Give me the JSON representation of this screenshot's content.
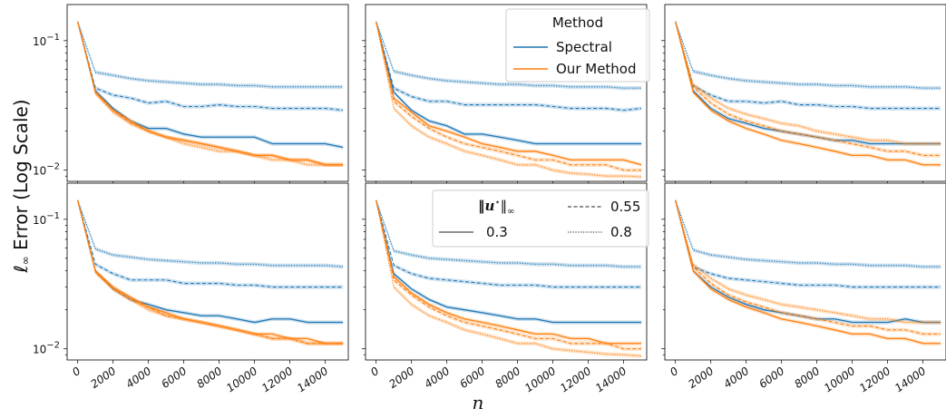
{
  "figure": {
    "ylabel_prefix": "ℓ",
    "ylabel_sub": "∞",
    "ylabel_rest": " Error (Log Scale)",
    "xlabel": "n",
    "xticks": [
      0,
      2000,
      4000,
      6000,
      8000,
      10000,
      12000,
      14000
    ],
    "yticks": [
      {
        "value": 0.1,
        "base": "10",
        "exp": "−1"
      },
      {
        "value": 0.01,
        "base": "10",
        "exp": "−2"
      }
    ],
    "yscale": "log",
    "ylim": [
      0.0082,
      0.19
    ],
    "xlim": [
      -600,
      15300
    ],
    "colors": {
      "Spectral": "#1f77b4",
      "Our Method": "#ff7f0e"
    }
  },
  "legend_method": {
    "title": "Method",
    "entries": [
      {
        "label": "Spectral",
        "color": "#1f77b4"
      },
      {
        "label": "Our Method",
        "color": "#ff7f0e"
      }
    ]
  },
  "legend_norm": {
    "title_main": "‖u",
    "title_sup": "⋆",
    "title_end": "‖",
    "title_sub": "∞",
    "entries": [
      {
        "label": "0.55",
        "dash": "dashed"
      },
      {
        "label": "0.3",
        "dash": "solid"
      },
      {
        "label": "0.8",
        "dash": "dotted"
      }
    ]
  },
  "chart_data": [
    {
      "type": "line",
      "panel": "row1-col1",
      "x": [
        0,
        1000,
        2000,
        3000,
        4000,
        5000,
        6000,
        7000,
        8000,
        9000,
        10000,
        11000,
        12000,
        13000,
        14000,
        15000
      ],
      "series": [
        {
          "name": "Spectral",
          "linestyle": "dotted",
          "values": [
            0.14,
            0.057,
            0.054,
            0.051,
            0.049,
            0.048,
            0.047,
            0.046,
            0.046,
            0.045,
            0.045,
            0.044,
            0.044,
            0.044,
            0.044,
            0.044
          ]
        },
        {
          "name": "Spectral",
          "linestyle": "dashed",
          "values": [
            0.14,
            0.043,
            0.038,
            0.036,
            0.033,
            0.034,
            0.031,
            0.031,
            0.032,
            0.031,
            0.031,
            0.03,
            0.03,
            0.03,
            0.03,
            0.029
          ]
        },
        {
          "name": "Spectral",
          "linestyle": "solid",
          "values": [
            0.14,
            0.041,
            0.03,
            0.024,
            0.021,
            0.021,
            0.019,
            0.018,
            0.018,
            0.018,
            0.018,
            0.016,
            0.016,
            0.016,
            0.016,
            0.015
          ]
        },
        {
          "name": "Our Method",
          "linestyle": "solid",
          "values": [
            0.14,
            0.04,
            0.029,
            0.024,
            0.02,
            0.018,
            0.017,
            0.016,
            0.015,
            0.014,
            0.013,
            0.013,
            0.012,
            0.012,
            0.011,
            0.011
          ]
        },
        {
          "name": "Our Method",
          "linestyle": "dashed",
          "values": [
            0.14,
            0.04,
            0.029,
            0.023,
            0.02,
            0.018,
            0.017,
            0.016,
            0.015,
            0.014,
            0.013,
            0.013,
            0.012,
            0.012,
            0.011,
            0.011
          ]
        },
        {
          "name": "Our Method",
          "linestyle": "dotted",
          "values": [
            0.14,
            0.039,
            0.028,
            0.023,
            0.02,
            0.018,
            0.016,
            0.015,
            0.014,
            0.014,
            0.013,
            0.012,
            0.012,
            0.011,
            0.011,
            0.011
          ]
        }
      ]
    },
    {
      "type": "line",
      "panel": "row1-col2",
      "x": [
        0,
        1000,
        2000,
        3000,
        4000,
        5000,
        6000,
        7000,
        8000,
        9000,
        10000,
        11000,
        12000,
        13000,
        14000,
        15000
      ],
      "series": [
        {
          "name": "Spectral",
          "linestyle": "dotted",
          "values": [
            0.14,
            0.058,
            0.054,
            0.051,
            0.049,
            0.048,
            0.047,
            0.046,
            0.046,
            0.045,
            0.045,
            0.044,
            0.044,
            0.044,
            0.043,
            0.043
          ]
        },
        {
          "name": "Spectral",
          "linestyle": "dashed",
          "values": [
            0.14,
            0.043,
            0.037,
            0.034,
            0.034,
            0.032,
            0.032,
            0.032,
            0.032,
            0.032,
            0.031,
            0.03,
            0.03,
            0.03,
            0.029,
            0.03
          ]
        },
        {
          "name": "Spectral",
          "linestyle": "solid",
          "values": [
            0.14,
            0.04,
            0.029,
            0.024,
            0.022,
            0.019,
            0.019,
            0.018,
            0.017,
            0.016,
            0.016,
            0.016,
            0.016,
            0.016,
            0.016,
            0.016
          ]
        },
        {
          "name": "Our Method",
          "linestyle": "solid",
          "values": [
            0.14,
            0.036,
            0.028,
            0.022,
            0.02,
            0.018,
            0.016,
            0.015,
            0.014,
            0.014,
            0.013,
            0.012,
            0.012,
            0.012,
            0.012,
            0.011
          ]
        },
        {
          "name": "Our Method",
          "linestyle": "dashed",
          "values": [
            0.14,
            0.034,
            0.026,
            0.021,
            0.018,
            0.016,
            0.015,
            0.014,
            0.013,
            0.012,
            0.012,
            0.011,
            0.011,
            0.011,
            0.01,
            0.01
          ]
        },
        {
          "name": "Our Method",
          "linestyle": "dotted",
          "values": [
            0.14,
            0.03,
            0.022,
            0.018,
            0.016,
            0.014,
            0.013,
            0.012,
            0.011,
            0.011,
            0.01,
            0.0095,
            0.0093,
            0.009,
            0.009,
            0.0089
          ]
        }
      ]
    },
    {
      "type": "line",
      "panel": "row1-col3",
      "x": [
        0,
        1000,
        2000,
        3000,
        4000,
        5000,
        6000,
        7000,
        8000,
        9000,
        10000,
        11000,
        12000,
        13000,
        14000,
        15000
      ],
      "series": [
        {
          "name": "Spectral",
          "linestyle": "dotted",
          "values": [
            0.14,
            0.058,
            0.054,
            0.051,
            0.049,
            0.048,
            0.047,
            0.046,
            0.046,
            0.045,
            0.045,
            0.044,
            0.044,
            0.044,
            0.043,
            0.043
          ]
        },
        {
          "name": "Spectral",
          "linestyle": "dashed",
          "values": [
            0.14,
            0.045,
            0.038,
            0.034,
            0.034,
            0.033,
            0.034,
            0.032,
            0.032,
            0.031,
            0.031,
            0.03,
            0.03,
            0.03,
            0.03,
            0.03
          ]
        },
        {
          "name": "Spectral",
          "linestyle": "solid",
          "values": [
            0.14,
            0.041,
            0.03,
            0.025,
            0.023,
            0.021,
            0.02,
            0.019,
            0.018,
            0.017,
            0.017,
            0.016,
            0.016,
            0.016,
            0.016,
            0.016
          ]
        },
        {
          "name": "Our Method",
          "linestyle": "solid",
          "values": [
            0.14,
            0.04,
            0.029,
            0.024,
            0.021,
            0.019,
            0.017,
            0.016,
            0.015,
            0.014,
            0.013,
            0.013,
            0.012,
            0.012,
            0.011,
            0.011
          ]
        },
        {
          "name": "Our Method",
          "linestyle": "dashed",
          "values": [
            0.14,
            0.044,
            0.033,
            0.027,
            0.024,
            0.022,
            0.02,
            0.019,
            0.018,
            0.017,
            0.016,
            0.015,
            0.014,
            0.014,
            0.013,
            0.013
          ]
        },
        {
          "name": "Our Method",
          "linestyle": "dotted",
          "values": [
            0.14,
            0.046,
            0.036,
            0.03,
            0.027,
            0.025,
            0.023,
            0.022,
            0.02,
            0.019,
            0.018,
            0.017,
            0.017,
            0.016,
            0.016,
            0.016
          ]
        }
      ]
    },
    {
      "type": "line",
      "panel": "row2-col1",
      "x": [
        0,
        1000,
        2000,
        3000,
        4000,
        5000,
        6000,
        7000,
        8000,
        9000,
        10000,
        11000,
        12000,
        13000,
        14000,
        15000
      ],
      "series": [
        {
          "name": "Spectral",
          "linestyle": "dotted",
          "values": [
            0.14,
            0.059,
            0.053,
            0.051,
            0.049,
            0.048,
            0.047,
            0.046,
            0.046,
            0.045,
            0.045,
            0.044,
            0.044,
            0.044,
            0.044,
            0.043
          ]
        },
        {
          "name": "Spectral",
          "linestyle": "dashed",
          "values": [
            0.14,
            0.045,
            0.038,
            0.034,
            0.034,
            0.034,
            0.032,
            0.032,
            0.032,
            0.031,
            0.031,
            0.03,
            0.03,
            0.03,
            0.03,
            0.03
          ]
        },
        {
          "name": "Spectral",
          "linestyle": "solid",
          "values": [
            0.14,
            0.04,
            0.029,
            0.024,
            0.022,
            0.02,
            0.019,
            0.018,
            0.018,
            0.017,
            0.016,
            0.017,
            0.017,
            0.016,
            0.016,
            0.016
          ]
        },
        {
          "name": "Our Method",
          "linestyle": "solid",
          "values": [
            0.14,
            0.04,
            0.03,
            0.025,
            0.021,
            0.019,
            0.017,
            0.016,
            0.015,
            0.014,
            0.013,
            0.013,
            0.012,
            0.012,
            0.011,
            0.011
          ]
        },
        {
          "name": "Our Method",
          "linestyle": "dashed",
          "values": [
            0.14,
            0.039,
            0.029,
            0.024,
            0.021,
            0.018,
            0.017,
            0.016,
            0.015,
            0.014,
            0.013,
            0.012,
            0.012,
            0.011,
            0.011,
            0.011
          ]
        },
        {
          "name": "Our Method",
          "linestyle": "dotted",
          "values": [
            0.14,
            0.039,
            0.029,
            0.024,
            0.02,
            0.018,
            0.017,
            0.016,
            0.015,
            0.014,
            0.013,
            0.012,
            0.012,
            0.011,
            0.011,
            0.011
          ]
        }
      ]
    },
    {
      "type": "line",
      "panel": "row2-col2",
      "x": [
        0,
        1000,
        2000,
        3000,
        4000,
        5000,
        6000,
        7000,
        8000,
        9000,
        10000,
        11000,
        12000,
        13000,
        14000,
        15000
      ],
      "series": [
        {
          "name": "Spectral",
          "linestyle": "dotted",
          "values": [
            0.14,
            0.057,
            0.053,
            0.05,
            0.049,
            0.048,
            0.047,
            0.046,
            0.046,
            0.045,
            0.045,
            0.044,
            0.044,
            0.044,
            0.043,
            0.043
          ]
        },
        {
          "name": "Spectral",
          "linestyle": "dashed",
          "values": [
            0.14,
            0.044,
            0.038,
            0.035,
            0.034,
            0.033,
            0.032,
            0.031,
            0.031,
            0.031,
            0.03,
            0.03,
            0.03,
            0.03,
            0.03,
            0.03
          ]
        },
        {
          "name": "Spectral",
          "linestyle": "solid",
          "values": [
            0.14,
            0.038,
            0.029,
            0.024,
            0.021,
            0.02,
            0.019,
            0.018,
            0.017,
            0.017,
            0.016,
            0.016,
            0.016,
            0.016,
            0.016,
            0.016
          ]
        },
        {
          "name": "Our Method",
          "linestyle": "solid",
          "values": [
            0.14,
            0.036,
            0.027,
            0.022,
            0.019,
            0.017,
            0.016,
            0.015,
            0.014,
            0.013,
            0.013,
            0.012,
            0.012,
            0.011,
            0.011,
            0.011
          ]
        },
        {
          "name": "Our Method",
          "linestyle": "dashed",
          "values": [
            0.14,
            0.034,
            0.026,
            0.021,
            0.018,
            0.016,
            0.015,
            0.014,
            0.013,
            0.012,
            0.012,
            0.011,
            0.011,
            0.011,
            0.01,
            0.01
          ]
        },
        {
          "name": "Our Method",
          "linestyle": "dotted",
          "values": [
            0.14,
            0.03,
            0.022,
            0.018,
            0.016,
            0.014,
            0.013,
            0.012,
            0.011,
            0.011,
            0.01,
            0.0097,
            0.0094,
            0.0091,
            0.009,
            0.0088
          ]
        }
      ]
    },
    {
      "type": "line",
      "panel": "row2-col3",
      "x": [
        0,
        1000,
        2000,
        3000,
        4000,
        5000,
        6000,
        7000,
        8000,
        9000,
        10000,
        11000,
        12000,
        13000,
        14000,
        15000
      ],
      "series": [
        {
          "name": "Spectral",
          "linestyle": "dotted",
          "values": [
            0.14,
            0.058,
            0.053,
            0.051,
            0.049,
            0.048,
            0.047,
            0.046,
            0.046,
            0.045,
            0.045,
            0.044,
            0.044,
            0.044,
            0.043,
            0.043
          ]
        },
        {
          "name": "Spectral",
          "linestyle": "dashed",
          "values": [
            0.14,
            0.043,
            0.038,
            0.035,
            0.034,
            0.033,
            0.032,
            0.031,
            0.031,
            0.031,
            0.03,
            0.03,
            0.03,
            0.03,
            0.03,
            0.03
          ]
        },
        {
          "name": "Spectral",
          "linestyle": "solid",
          "values": [
            0.14,
            0.04,
            0.03,
            0.025,
            0.022,
            0.02,
            0.019,
            0.018,
            0.017,
            0.017,
            0.016,
            0.016,
            0.016,
            0.017,
            0.016,
            0.016
          ]
        },
        {
          "name": "Our Method",
          "linestyle": "solid",
          "values": [
            0.14,
            0.04,
            0.029,
            0.024,
            0.021,
            0.019,
            0.017,
            0.016,
            0.015,
            0.014,
            0.013,
            0.013,
            0.012,
            0.012,
            0.011,
            0.011
          ]
        },
        {
          "name": "Our Method",
          "linestyle": "dashed",
          "values": [
            0.14,
            0.043,
            0.032,
            0.026,
            0.023,
            0.021,
            0.019,
            0.018,
            0.017,
            0.016,
            0.015,
            0.015,
            0.014,
            0.014,
            0.013,
            0.013
          ]
        },
        {
          "name": "Our Method",
          "linestyle": "dotted",
          "values": [
            0.14,
            0.045,
            0.035,
            0.029,
            0.026,
            0.024,
            0.022,
            0.021,
            0.02,
            0.019,
            0.018,
            0.017,
            0.017,
            0.016,
            0.016,
            0.016
          ]
        }
      ]
    }
  ]
}
